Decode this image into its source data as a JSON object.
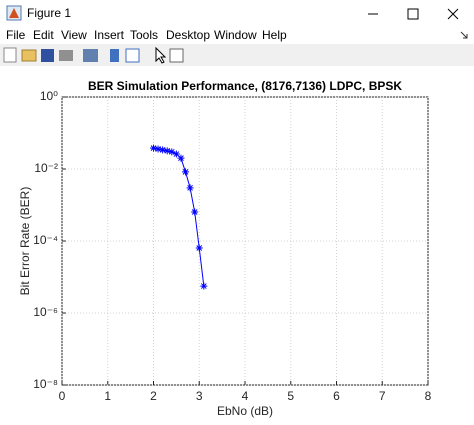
{
  "window": {
    "title": "Figure 1",
    "menu": [
      "File",
      "Edit",
      "View",
      "Insert",
      "Tools",
      "Desktop",
      "Window",
      "Help"
    ]
  },
  "chart_data": {
    "type": "line",
    "title": "BER Simulation Performance, (8176,7136) LDPC, BPSK",
    "x_label": "EbNo (dB)",
    "y_label": "Bit Error Rate (BER)",
    "x": [
      2.0,
      2.1,
      2.2,
      2.3,
      2.4,
      2.5,
      2.6,
      2.7,
      2.8,
      2.9,
      3.0,
      3.1
    ],
    "series": [
      {
        "color": "#0000ff",
        "marker": "*",
        "values": [
          0.038,
          0.036,
          0.034,
          0.032,
          0.03,
          0.026,
          0.02,
          0.0083,
          0.003,
          0.00064,
          6.4e-05,
          5.6e-06
        ]
      }
    ],
    "xlim": [
      0,
      8
    ],
    "xticks": [
      0,
      1,
      2,
      3,
      4,
      5,
      6,
      7,
      8
    ],
    "ylim": [
      1e-08,
      1
    ],
    "log_y": true,
    "yticks": [
      {
        "value": 1,
        "label": "10⁰"
      },
      {
        "value": 0.01,
        "label": "10⁻²"
      },
      {
        "value": 0.0001,
        "label": "10⁻⁴"
      },
      {
        "value": 1e-06,
        "label": "10⁻⁶"
      },
      {
        "value": 1e-08,
        "label": "10⁻⁸"
      }
    ],
    "grid": true
  }
}
